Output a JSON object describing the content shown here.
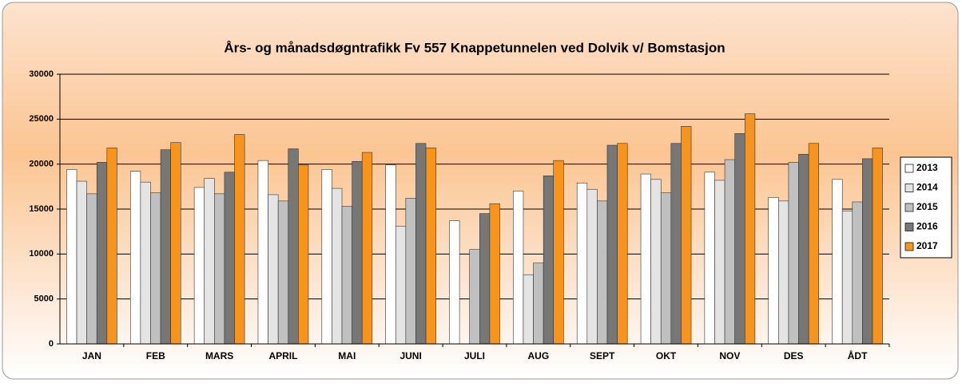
{
  "chart_data": {
    "type": "bar",
    "title": "Års- og månadsdøgntrafikk Fv 557 Knappetunnelen ved Dolvik v/ Bomstasjon",
    "categories": [
      "JAN",
      "FEB",
      "MARS",
      "APRIL",
      "MAI",
      "JUNI",
      "JULI",
      "AUG",
      "SEPT",
      "OKT",
      "NOV",
      "DES",
      "ÅDT"
    ],
    "series": [
      {
        "name": "2013",
        "color": "#ffffff",
        "values": [
          19400,
          19200,
          17400,
          20400,
          19400,
          19900,
          13700,
          17000,
          17900,
          18900,
          19100,
          16300,
          18300
        ]
      },
      {
        "name": "2014",
        "color": "#e4e4e4",
        "values": [
          18100,
          18000,
          18400,
          16600,
          17300,
          13100,
          null,
          7700,
          17200,
          18300,
          18200,
          15900,
          14800
        ]
      },
      {
        "name": "2015",
        "color": "#c0c0c0",
        "values": [
          16700,
          16800,
          16700,
          15900,
          15300,
          16200,
          10500,
          9000,
          15900,
          16800,
          20500,
          20200,
          15800
        ]
      },
      {
        "name": "2016",
        "color": "#777777",
        "values": [
          20200,
          21600,
          19100,
          21700,
          20300,
          22300,
          14500,
          18700,
          22100,
          22300,
          23400,
          21100,
          20600
        ]
      },
      {
        "name": "2017",
        "color": "#f7941d",
        "values": [
          21800,
          22400,
          23300,
          19900,
          21300,
          21800,
          15600,
          20400,
          22300,
          24200,
          25600,
          22300,
          21800
        ]
      }
    ],
    "ylim": [
      0,
      30000
    ],
    "yticks": [
      0,
      5000,
      10000,
      15000,
      20000,
      25000,
      30000
    ],
    "grid": true,
    "legend": "right"
  }
}
